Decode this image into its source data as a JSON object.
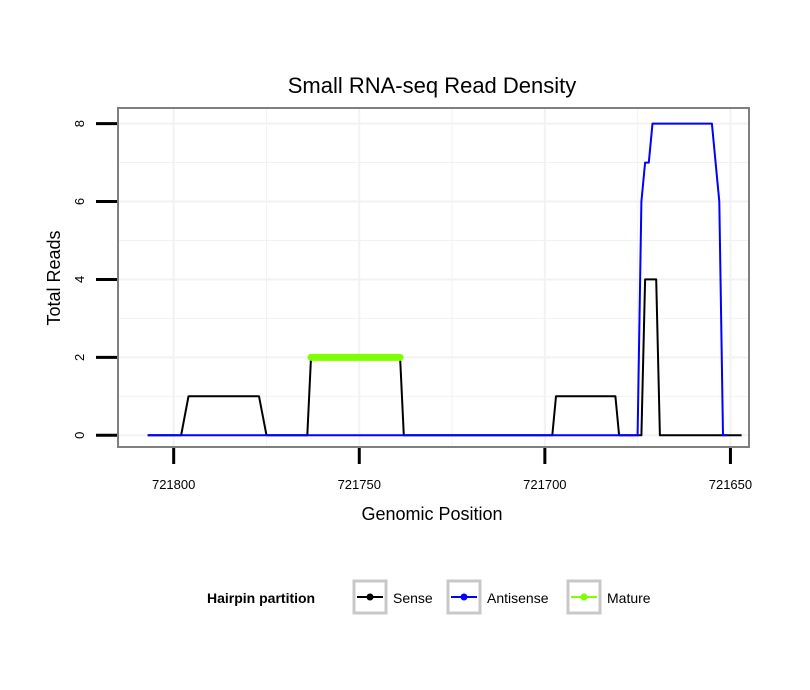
{
  "chart_data": {
    "type": "line",
    "title": "Small RNA-seq Read Density",
    "xlabel": "Genomic Position",
    "ylabel": "Total Reads",
    "xlim": [
      721815,
      721645
    ],
    "ylim": [
      -0.3,
      8.4
    ],
    "x_reversed": true,
    "xticks": [
      721800,
      721750,
      721700,
      721650
    ],
    "xtick_labels": [
      "721800",
      "721750",
      "721700",
      "721650"
    ],
    "yticks": [
      0,
      2,
      4,
      6,
      8
    ],
    "ytick_labels": [
      "0",
      "2",
      "4",
      "6",
      "8"
    ],
    "grid": true,
    "legend": {
      "title": "Hairpin partition",
      "position": "bottom",
      "entries": [
        "Sense",
        "Antisense",
        "Mature"
      ]
    },
    "series": [
      {
        "name": "Sense",
        "color": "#000000",
        "x": [
          721807,
          721798,
          721796,
          721777,
          721775,
          721764,
          721763,
          721739,
          721738,
          721725,
          721724,
          721698,
          721697,
          721681,
          721680,
          721674,
          721673,
          721670,
          721669,
          721647
        ],
        "y": [
          0,
          0,
          1,
          1,
          0,
          0,
          2,
          2,
          0,
          0,
          0,
          0,
          1,
          1,
          0,
          0,
          4,
          4,
          0,
          0
        ]
      },
      {
        "name": "Antisense",
        "color": "#0000ff",
        "x": [
          721807,
          721675,
          721674,
          721673,
          721672,
          721671,
          721670,
          721655,
          721653,
          721652,
          721651
        ],
        "y": [
          0,
          0,
          6,
          7,
          7,
          8,
          8,
          8,
          6,
          0,
          0
        ]
      },
      {
        "name": "Mature",
        "color": "#7fff00",
        "x": [
          721763,
          721739
        ],
        "y": [
          2,
          2
        ]
      }
    ]
  }
}
